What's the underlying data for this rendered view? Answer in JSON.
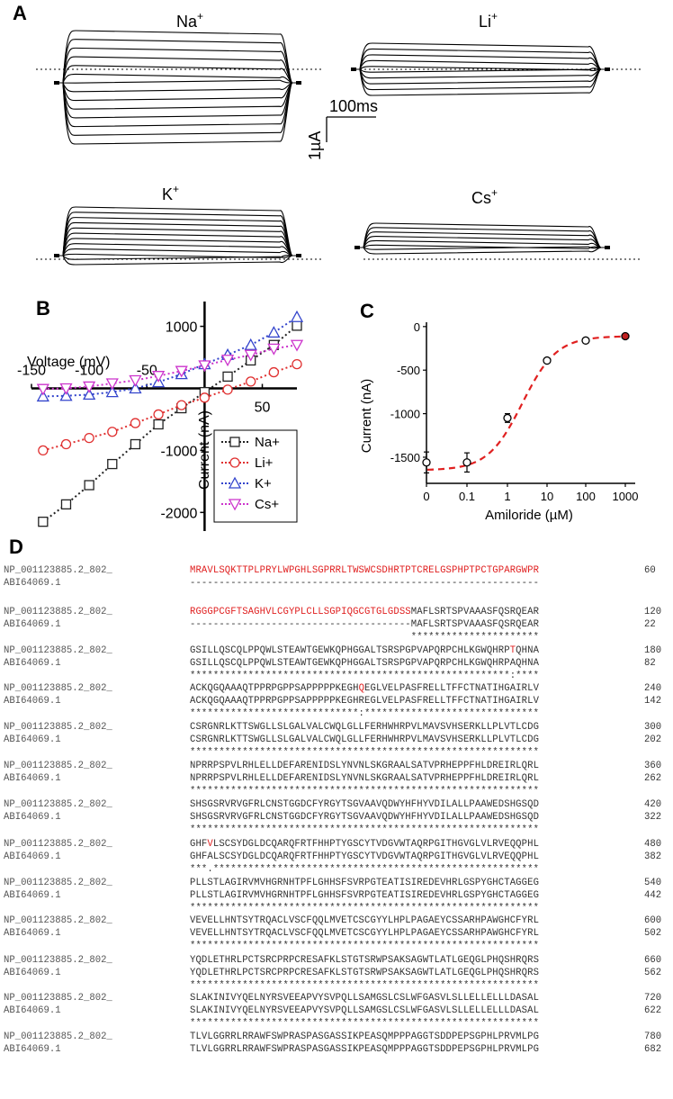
{
  "panels": {
    "A": "A",
    "B": "B",
    "C": "C",
    "D": "D"
  },
  "traces": {
    "na_label": "Na",
    "li_label": "Li",
    "k_label": "K",
    "cs_label": "Cs",
    "plus": "+",
    "scale_time": "100ms",
    "scale_current": "1µA"
  },
  "chart_data": [
    {
      "type": "line",
      "xlabel": "Voltage (mV)",
      "ylabel": "Current (nA)",
      "xlim": [
        -150,
        80
      ],
      "ylim": [
        -2300,
        1400
      ],
      "x_ticks": [
        "-150",
        "-100",
        "-50",
        "50"
      ],
      "y_ticks": [
        "1000",
        "-1000",
        "-2000"
      ],
      "legend_position": "bottom-right",
      "series": [
        {
          "name": "Na+",
          "marker": "square",
          "color": "#222222",
          "x": [
            -140,
            -120,
            -100,
            -80,
            -60,
            -40,
            -20,
            0,
            20,
            40,
            60,
            80
          ],
          "y": [
            -2150,
            -1870,
            -1560,
            -1220,
            -900,
            -580,
            -320,
            -60,
            190,
            450,
            700,
            1010
          ]
        },
        {
          "name": "Li+",
          "marker": "circle",
          "color": "#e03030",
          "x": [
            -140,
            -120,
            -100,
            -80,
            -60,
            -40,
            -20,
            0,
            20,
            40,
            60,
            80
          ],
          "y": [
            -1000,
            -900,
            -800,
            -700,
            -560,
            -420,
            -270,
            -150,
            -20,
            110,
            260,
            390
          ]
        },
        {
          "name": "K+",
          "marker": "triangle-up",
          "color": "#3344cc",
          "x": [
            -140,
            -120,
            -100,
            -80,
            -60,
            -40,
            -20,
            0,
            20,
            40,
            60,
            80
          ],
          "y": [
            -130,
            -120,
            -100,
            -60,
            0,
            100,
            230,
            390,
            540,
            700,
            900,
            1150
          ]
        },
        {
          "name": "Cs+",
          "marker": "triangle-down",
          "color": "#cc33cc",
          "x": [
            -140,
            -120,
            -100,
            -80,
            -60,
            -40,
            -20,
            0,
            20,
            40,
            60,
            80
          ],
          "y": [
            -10,
            0,
            30,
            80,
            130,
            200,
            280,
            370,
            460,
            540,
            640,
            700
          ]
        }
      ]
    },
    {
      "type": "scatter",
      "xlabel": "Amiloride (µM)",
      "ylabel": "Current (nA)",
      "xscale": "log",
      "x_ticks": [
        "0",
        "0.1",
        "1",
        "10",
        "100",
        "1000"
      ],
      "y_ticks": [
        "0",
        "-500",
        "-1000",
        "-1500"
      ],
      "ylim": [
        -1800,
        50
      ],
      "series": [
        {
          "x": [
            0,
            0.1,
            1,
            10,
            100,
            1000
          ],
          "y": [
            -1560,
            -1560,
            -1050,
            -390,
            -160,
            -110
          ],
          "err": [
            120,
            110,
            50,
            20,
            15,
            10
          ]
        }
      ],
      "fit": {
        "style": "dashed",
        "color": "#e02020",
        "top": -110,
        "bottom": -1650,
        "ic50": 2.5
      }
    }
  ],
  "alignment": {
    "id1": "NP_001123885.2_802_",
    "id2": "ABI64069.1",
    "blocks": [
      {
        "s1": "MRAVLSQKTTPLPRYLWPGHLSGPRRLTWSWCSDHRTPTCRELGSPHPTPCTGPARGWPR",
        "n1": "60",
        "s2": "------------------------------------------------------------",
        "n2": "",
        "cons": ""
      },
      {
        "s1": "RGGGPCGFTSAGHVLCGYPLCLLSGPIQGCGTGLGDSSMAFLSRTSPVAAASFQSRQEAR",
        "n1": "120",
        "s2": "--------------------------------------MAFLSRTSPVAAASFQSRQEAR",
        "n2": "22",
        "cons": "                                      **********************"
      },
      {
        "s1": "GSILLQSCQLPPQWLSTEAWTGEWKQPHGGALTSRSPGPVAPQRPCHLKGWQHRPTQHNA",
        "n1": "180",
        "s2": "GSILLQSCQLPPQWLSTEAWTGEWKQPHGGALTSRSPGPVAPQRPCHLKGWQHRPAQHNA",
        "n2": "82",
        "cons": "*******************************************************:****"
      },
      {
        "s1": "ACKQGQAAAQTPPRPGPPSAPPPPPKEGHQEGLVELPASFRELLTFFCTNATIHGAIRLV",
        "n1": "240",
        "s2": "ACKQGQAAAQTPPRPGPPSAPPPPPKEGHREGLVELPASFRELLTFFCTNATIHGAIRLV",
        "n2": "142",
        "cons": "*****************************:******************************"
      },
      {
        "s1": "CSRGNRLKTTSWGLLSLGALVALCWQLGLLFERHWHRPVLMAVSVHSERKLLPLVTLCDG",
        "n1": "300",
        "s2": "CSRGNRLKTTSWGLLSLGALVALCWQLGLLFERHWHRPVLMAVSVHSERKLLPLVTLCDG",
        "n2": "202",
        "cons": "************************************************************"
      },
      {
        "s1": "NPRRPSPVLRHLELLDEFARENIDSLYNVNLSKGRAALSATVPRHEPPFHLDREIRLQRL",
        "n1": "360",
        "s2": "NPRRPSPVLRHLELLDEFARENIDSLYNVNLSKGRAALSATVPRHEPPFHLDREIRLQRL",
        "n2": "262",
        "cons": "************************************************************"
      },
      {
        "s1": "SHSGSRVRVGFRLCNSTGGDCFYRGYTSGVAAVQDWYHFHYVDILALLPAAWEDSHGSQD",
        "n1": "420",
        "s2": "SHSGSRVRVGFRLCNSTGGDCFYRGYTSGVAAVQDWYHFHYVDILALLPAAWEDSHGSQD",
        "n2": "322",
        "cons": "************************************************************"
      },
      {
        "s1": "GHFVLSCSYDGLDCQARQFRTFHHPTYGSCYTVDGVWTAQRPGITHGVGLVLRVEQQPHL",
        "n1": "480",
        "s2": "GHFALSCSYDGLDCQARQFRTFHHPTYGSCYTVDGVWTAQRPGITHGVGLVLRVEQQPHL",
        "n2": "382",
        "cons": "***.********************************************************"
      },
      {
        "s1": "PLLSTLAGIRVMVHGRNHTPFLGHHSFSVRPGTEATISIREDEVHRLGSPYGHCTAGGEG",
        "n1": "540",
        "s2": "PLLSTLAGIRVMVHGRNHTPFLGHHSFSVRPGTEATISIREDEVHRLGSPYGHCTAGGEG",
        "n2": "442",
        "cons": "************************************************************"
      },
      {
        "s1": "VEVELLHNTSYTRQACLVSCFQQLMVETCSCGYYLHPLPAGAEYCSSARHPAWGHCFYRL",
        "n1": "600",
        "s2": "VEVELLHNTSYTRQACLVSCFQQLMVETCSCGYYLHPLPAGAEYCSSARHPAWGHCFYRL",
        "n2": "502",
        "cons": "************************************************************"
      },
      {
        "s1": "YQDLETHRLPCTSRCPRPCRESAFKLSTGTSRWPSAKSAGWTLATLGEQGLPHQSHRQRS",
        "n1": "660",
        "s2": "YQDLETHRLPCTSRCPRPCRESAFKLSTGTSRWPSAKSAGWTLATLGEQGLPHQSHRQRS",
        "n2": "562",
        "cons": "************************************************************"
      },
      {
        "s1": "SLAKINIVYQELNYRSVEEAPVYSVPQLLSAMGSLCSLWFGASVLSLLELLELLLDASAL",
        "n1": "720",
        "s2": "SLAKINIVYQELNYRSVEEAPVYSVPQLLSAMGSLCSLWFGASVLSLLELLELLLDASAL",
        "n2": "622",
        "cons": "************************************************************"
      },
      {
        "s1": "TLVLGGRRLRRAWFSWPRASPASGASSIKPEASQMPPPAGGTSDDPEPSGPHLPRVMLPG",
        "n1": "780",
        "s2": "TLVLGGRRLRRAWFSWPRASPASGASSIKPEASQMPPPAGGTSDDPEPSGPHLPRVMLPG",
        "n2": "682",
        "cons": ""
      }
    ]
  }
}
